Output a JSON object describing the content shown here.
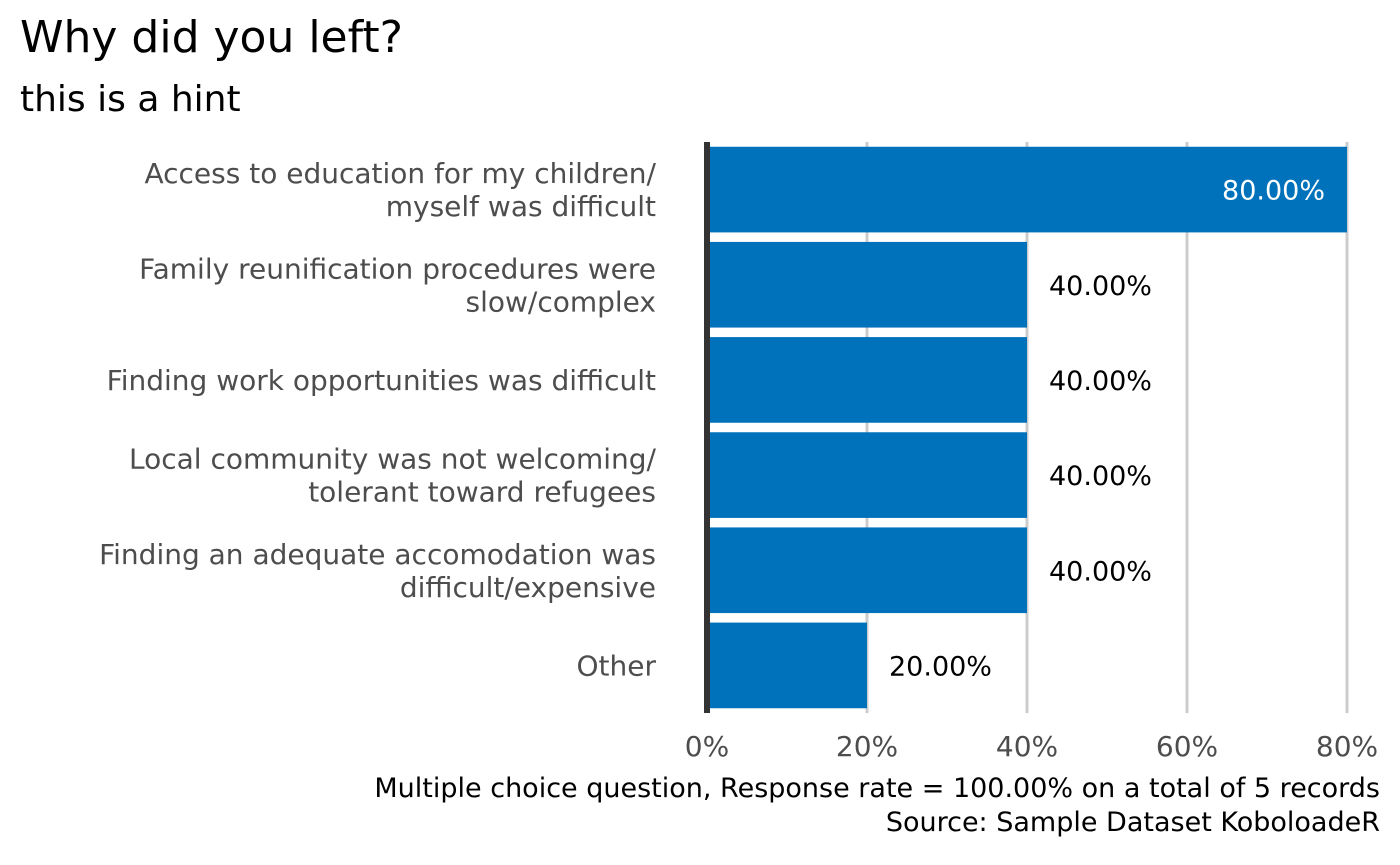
{
  "chart_data": {
    "type": "bar",
    "orientation": "horizontal",
    "title": "Why did you left?",
    "subtitle": "this is a hint",
    "categories": [
      [
        "Access to education for my children/",
        "myself was difficult"
      ],
      [
        "Family reunification procedures were",
        "slow/complex"
      ],
      [
        "Finding work opportunities was difficult"
      ],
      [
        "Local community was not welcoming/",
        "tolerant toward refugees"
      ],
      [
        "Finding an adequate accomodation was",
        "difficult/expensive"
      ],
      [
        "Other"
      ]
    ],
    "values": [
      80,
      40,
      40,
      40,
      40,
      20
    ],
    "value_labels": [
      "80.00%",
      "40.00%",
      "40.00%",
      "40.00%",
      "40.00%",
      "20.00%"
    ],
    "xlim": [
      0,
      80
    ],
    "xticks": [
      0,
      20,
      40,
      60,
      80
    ],
    "xtick_labels": [
      "0%",
      "20%",
      "40%",
      "60%",
      "80%"
    ],
    "grid": "vertical",
    "bar_color": "#0072bc",
    "caption": [
      "Multiple choice question, Response rate = 100.00% on a total of 5 records",
      "Source: Sample Dataset KoboloadeR"
    ]
  }
}
